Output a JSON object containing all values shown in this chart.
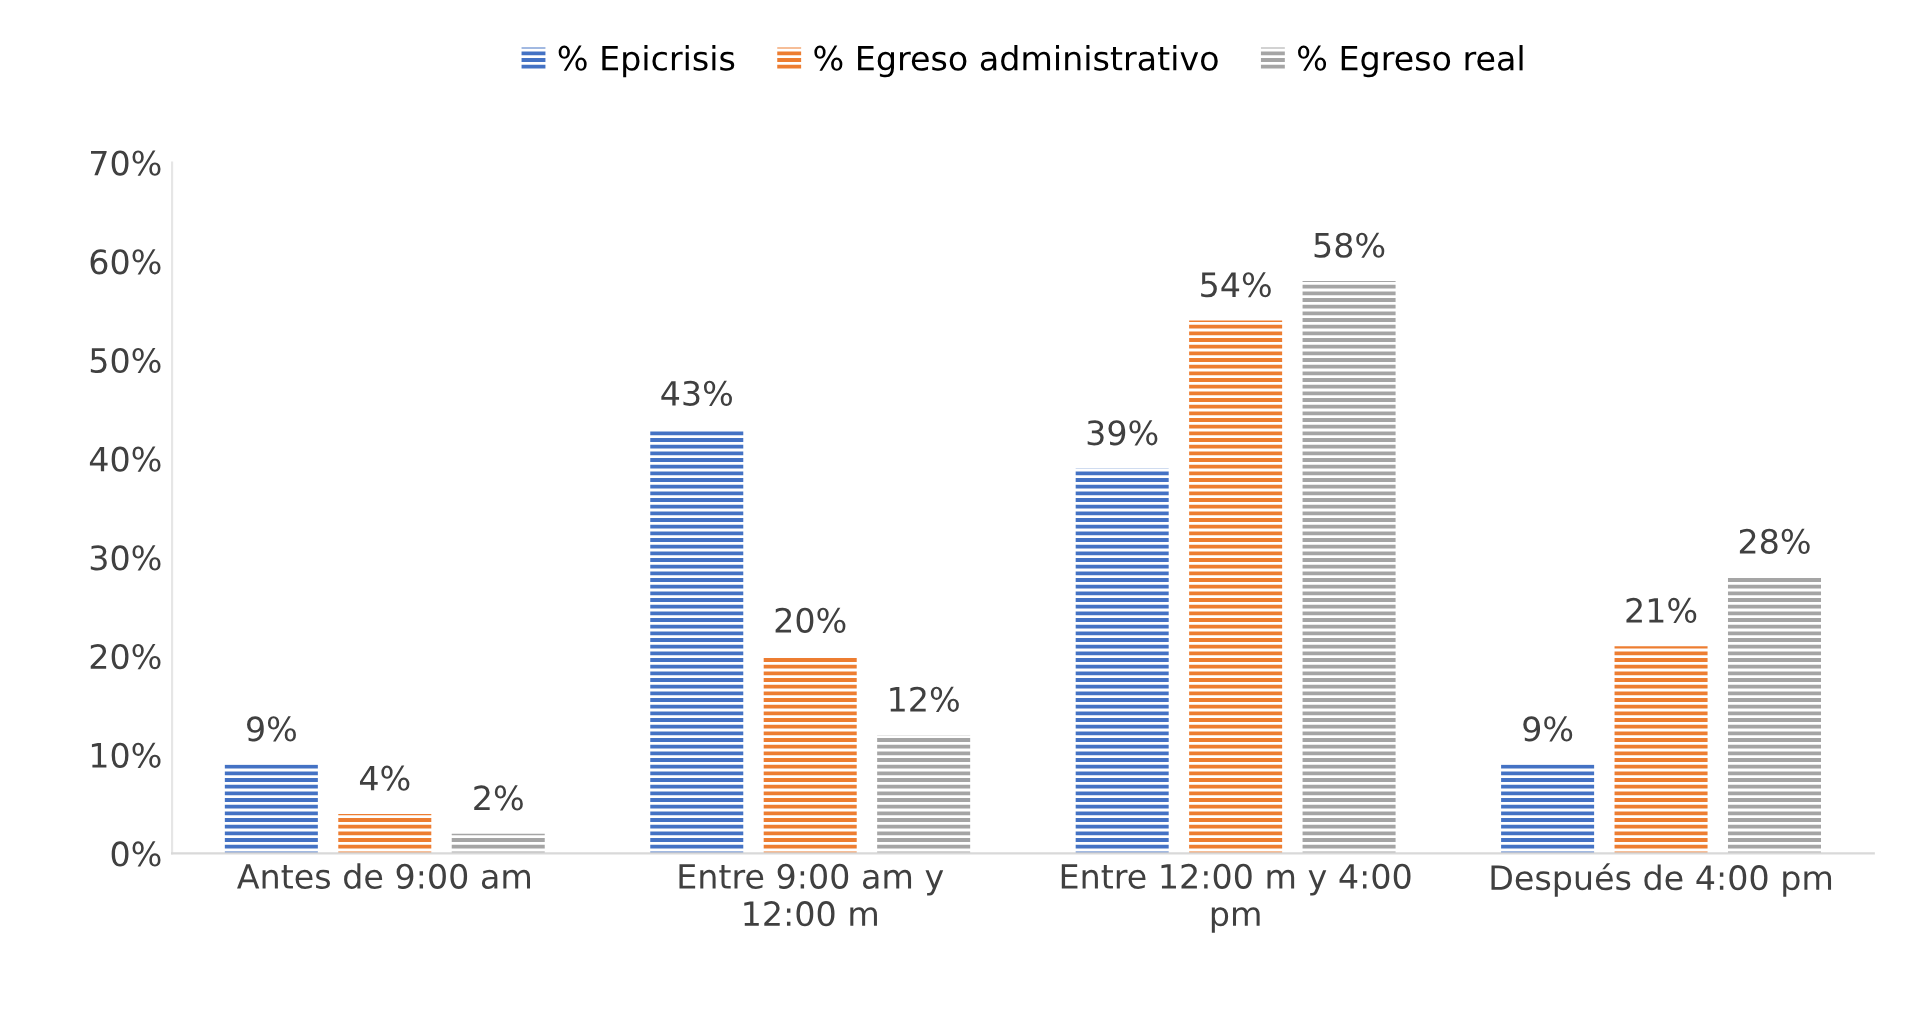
{
  "chart_data": {
    "type": "bar",
    "categories": [
      "Antes de 9:00 am",
      "Entre 9:00 am y\n12:00 m",
      "Entre 12:00 m y 4:00\npm",
      "Después de 4:00 pm"
    ],
    "series": [
      {
        "name": "% Epicrisis",
        "color": "#4472c4",
        "values": [
          9,
          43,
          39,
          9
        ],
        "value_labels": [
          "9%",
          "43%",
          "39%",
          "9%"
        ]
      },
      {
        "name": "% Egreso administrativo",
        "color": "#ed7d31",
        "values": [
          4,
          20,
          54,
          21
        ],
        "value_labels": [
          "4%",
          "20%",
          "54%",
          "21%"
        ]
      },
      {
        "name": "% Egreso real",
        "color": "#a5a5a5",
        "values": [
          2,
          12,
          58,
          28
        ],
        "value_labels": [
          "2%",
          "12%",
          "58%",
          "28%"
        ]
      }
    ],
    "ylim": [
      0,
      70
    ],
    "yticks": [
      {
        "value": 0,
        "label": "0%"
      },
      {
        "value": 10,
        "label": "10%"
      },
      {
        "value": 20,
        "label": "20%"
      },
      {
        "value": 30,
        "label": "30%"
      },
      {
        "value": 40,
        "label": "40%"
      },
      {
        "value": 50,
        "label": "50%"
      },
      {
        "value": 60,
        "label": "60%"
      },
      {
        "value": 70,
        "label": "70%"
      }
    ],
    "grid": false,
    "legend": "top"
  }
}
